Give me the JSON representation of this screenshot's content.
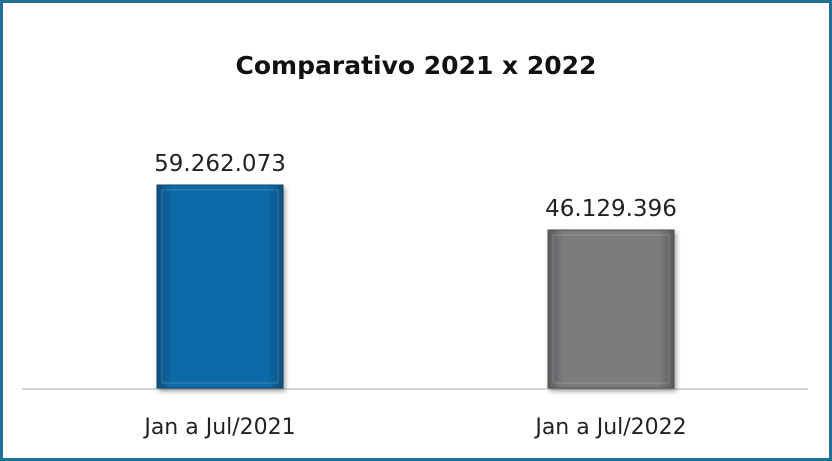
{
  "chart_data": {
    "type": "bar",
    "title": "Comparativo 2021 x 2022",
    "categories": [
      "Jan a Jul/2021",
      "Jan a Jul/2022"
    ],
    "values": [
      59262073,
      46129396
    ],
    "value_labels": [
      "59.262.073",
      "46.129.396"
    ],
    "colors": [
      "#0a6aa6",
      "#7a7b7d"
    ],
    "xlabel": "",
    "ylabel": "",
    "ylim": [
      0,
      59262073
    ],
    "grid": false,
    "legend": "none"
  }
}
